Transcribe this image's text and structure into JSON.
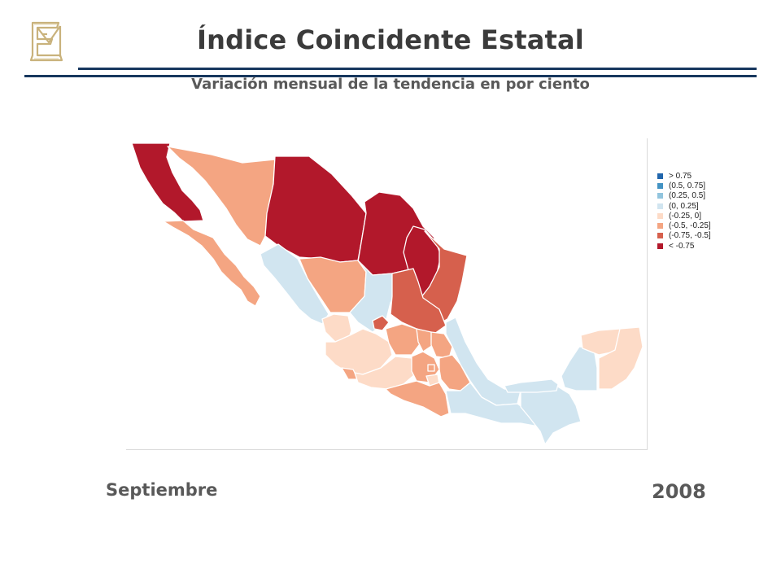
{
  "header": {
    "title": "Índice Coincidente Estatal",
    "subtitle": "Variación mensual de la tendencia en por ciento",
    "logo_icon": "banxico-monogram-icon"
  },
  "legend": {
    "items": [
      {
        "label": "> 0.75",
        "color": "#2166ac"
      },
      {
        "label": "(0.5, 0.75]",
        "color": "#4393c3"
      },
      {
        "label": "(0.25, 0.5]",
        "color": "#92c5de"
      },
      {
        "label": "(0, 0.25]",
        "color": "#d1e5f0"
      },
      {
        "label": "(-0.25, 0]",
        "color": "#fddbc7"
      },
      {
        "label": "(-0.5, -0.25]",
        "color": "#f4a582"
      },
      {
        "label": "(-0.75, -0.5]",
        "color": "#d6604d"
      },
      {
        "label": "< -0.75",
        "color": "#b2182b"
      }
    ]
  },
  "footer": {
    "month": "Septiembre",
    "year": "2008"
  },
  "colors": {
    "rule": "#17375e",
    "text": "#595959",
    "logo": "#c9b27c"
  }
}
